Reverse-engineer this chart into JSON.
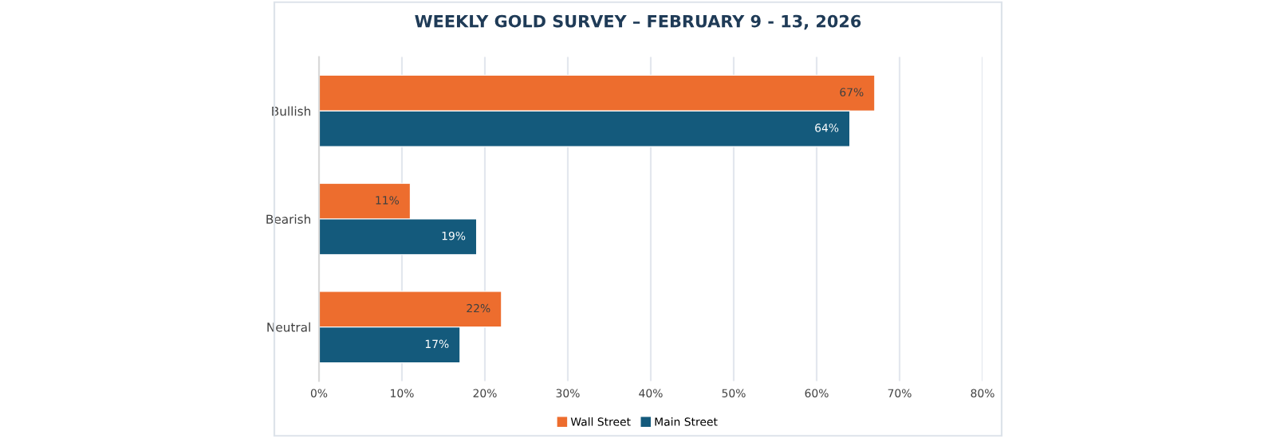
{
  "chart_data": {
    "type": "bar",
    "orientation": "horizontal",
    "title": "WEEKLY GOLD SURVEY – FEBRUARY 9 - 13, 2026",
    "categories": [
      "Bullish",
      "Bearish",
      "Neutral"
    ],
    "series": [
      {
        "name": "Wall Street",
        "color": "#ed6d2e",
        "values": [
          67,
          11,
          22
        ],
        "value_labels": [
          "67%",
          "11%",
          "22%"
        ]
      },
      {
        "name": "Main Street",
        "color": "#145a7c",
        "values": [
          64,
          19,
          17
        ],
        "value_labels": [
          "64%",
          "19%",
          "17%"
        ]
      }
    ],
    "xlim": [
      0,
      80
    ],
    "xticks": [
      {
        "value": 0,
        "label": "0%"
      },
      {
        "value": 10,
        "label": "10%"
      },
      {
        "value": 20,
        "label": "20%"
      },
      {
        "value": 30,
        "label": "30%"
      },
      {
        "value": 40,
        "label": "40%"
      },
      {
        "value": 50,
        "label": "50%"
      },
      {
        "value": 60,
        "label": "60%"
      },
      {
        "value": 70,
        "label": "70%"
      },
      {
        "value": 80,
        "label": "80%"
      }
    ],
    "grid": "x",
    "legend": "bottom"
  }
}
